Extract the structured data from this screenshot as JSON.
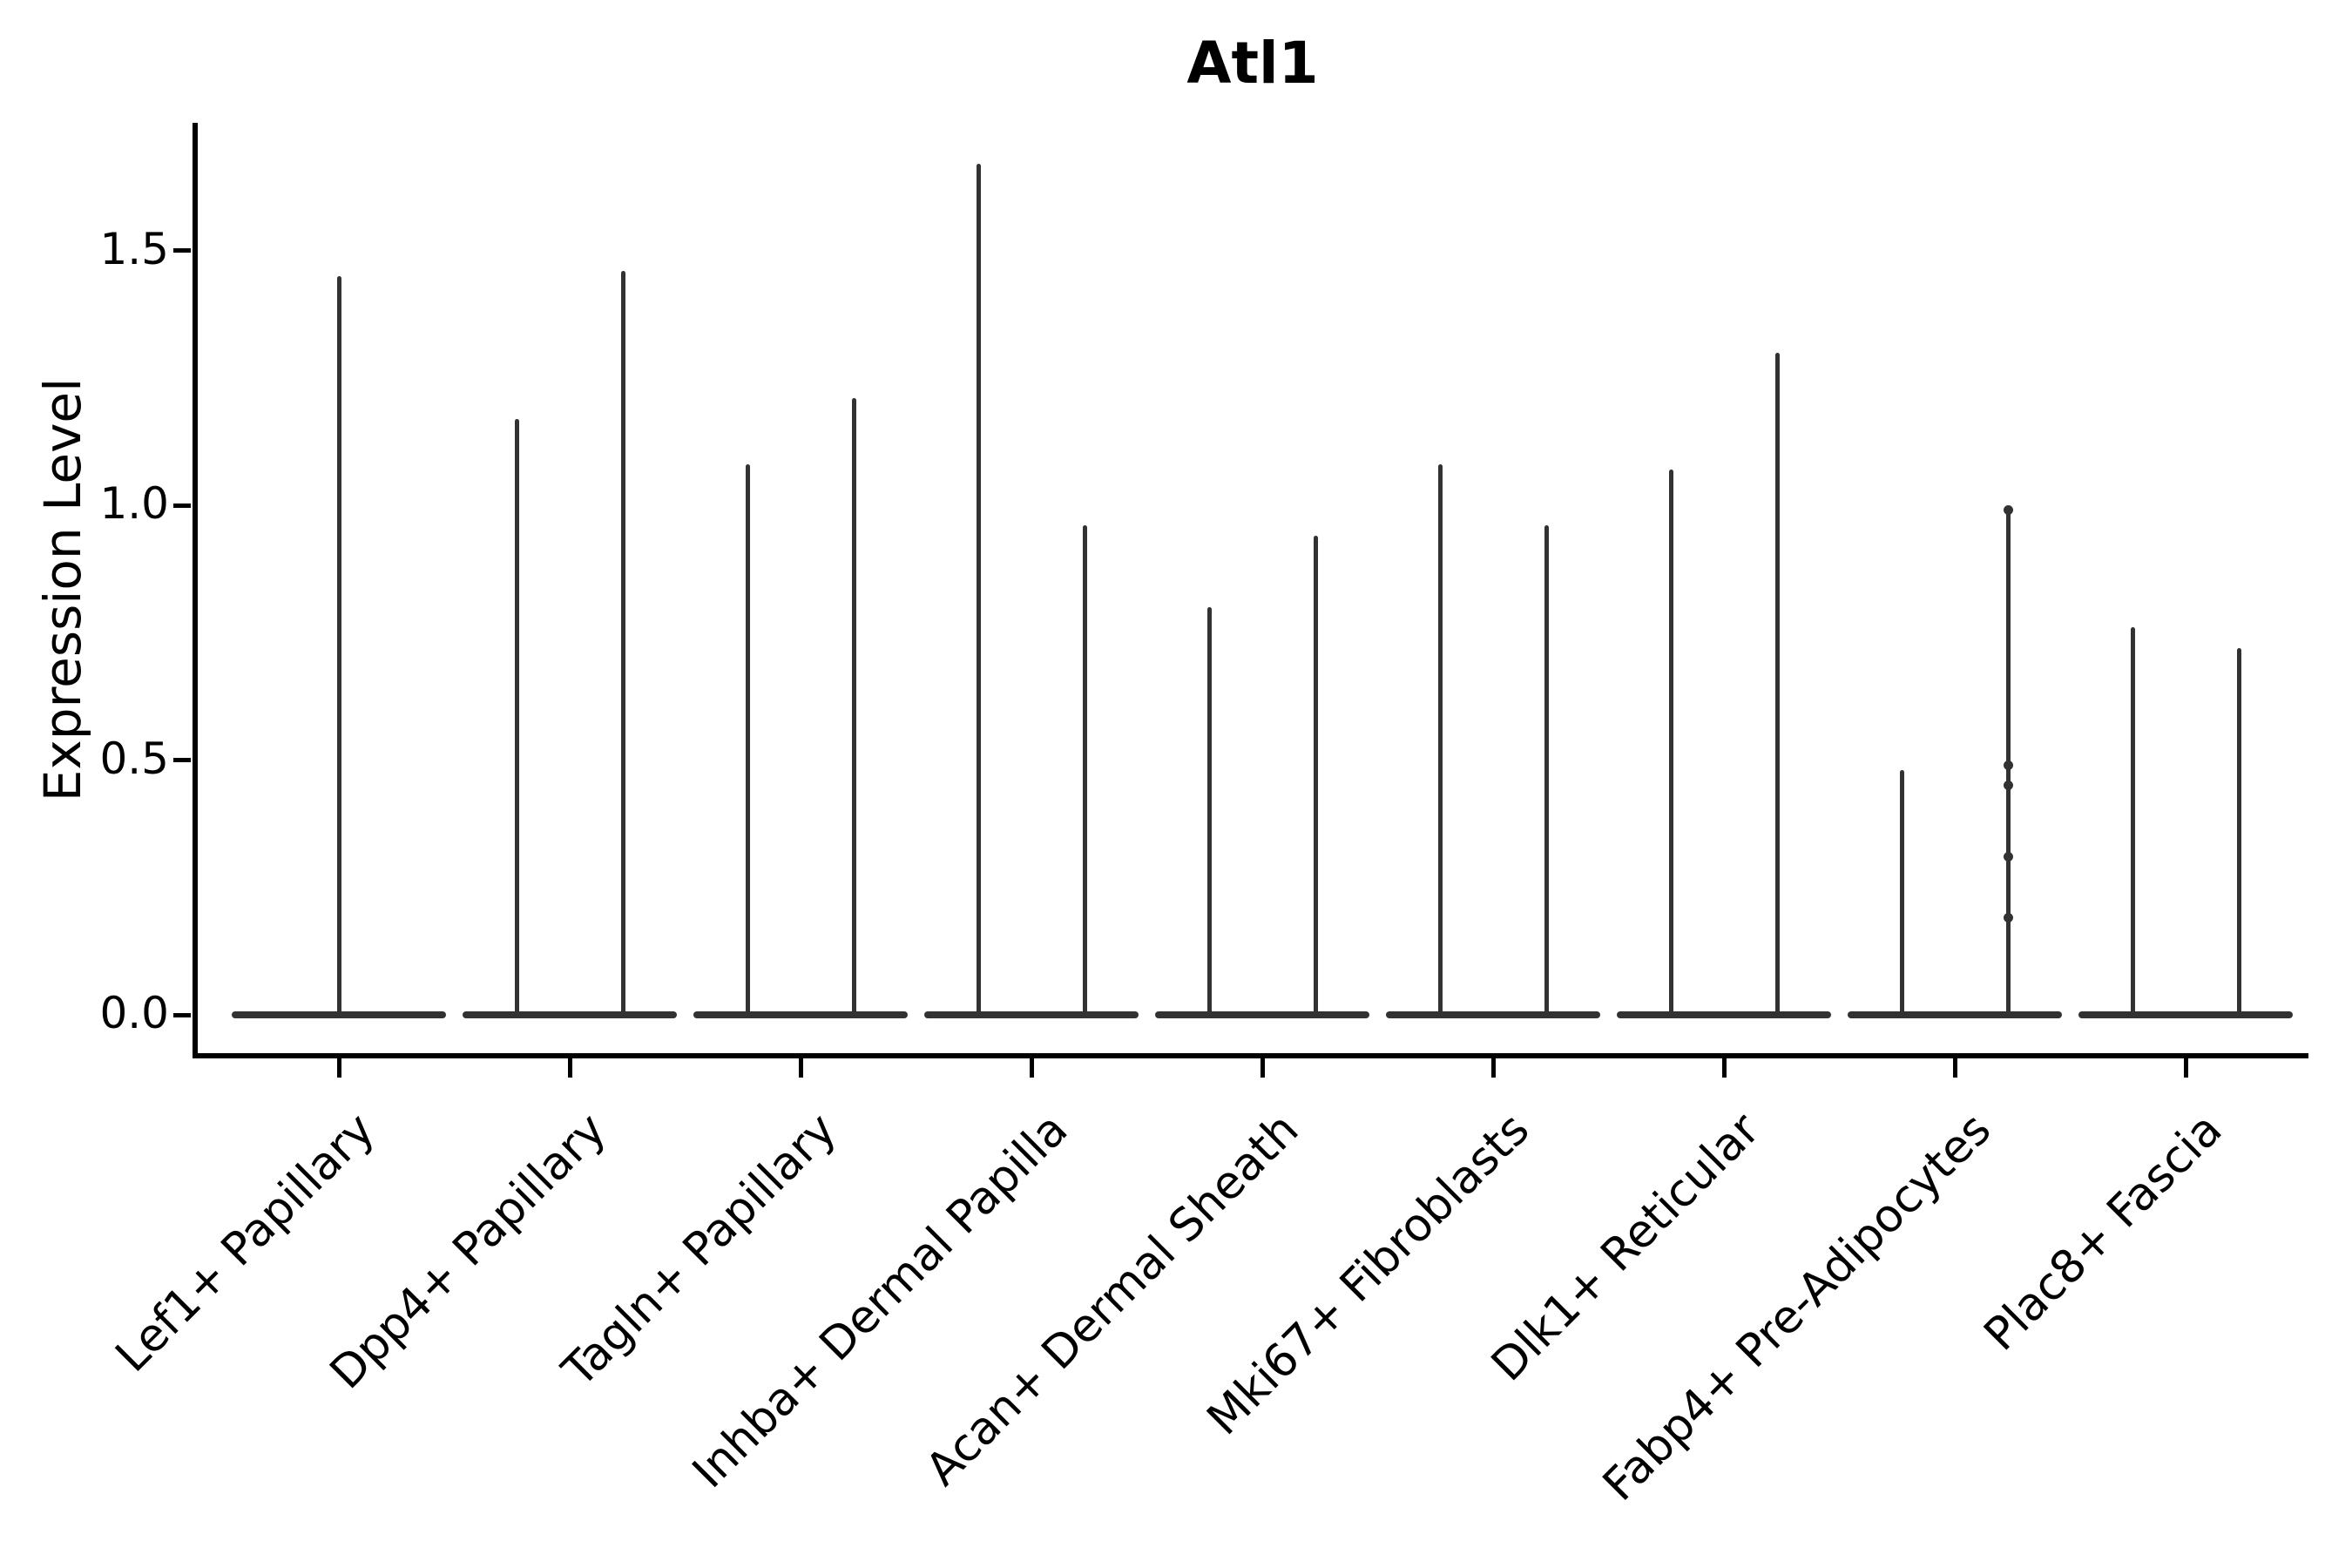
{
  "chart_data": {
    "type": "violin",
    "title": "Atl1",
    "ylabel": "Expression Level",
    "xlabel": "",
    "ytick_labels": [
      "1.5",
      "1.0",
      "0.5",
      "0.0"
    ],
    "ytick_values": [
      1.5,
      1.0,
      0.5,
      0.0
    ],
    "ylim": [
      -0.08,
      1.75
    ],
    "grid": false,
    "legend_position": "none",
    "categories": [
      "Lef1+ Papillary",
      "Dpp4+ Papillary",
      "Tagln+ Papillary",
      "Inhba+ Dermal Papilla",
      "Acan+ Dermal Sheath",
      "Mki67+ Fibroblasts",
      "Dlk1+ Reticular",
      "Fabp4+ Pre-Adipocytes",
      "Plac8+ Fascia"
    ],
    "violins": [
      {
        "category": "Lef1+ Papillary",
        "baseline": 0.0,
        "spikes": [
          {
            "pos": "center",
            "peak": 1.45
          }
        ]
      },
      {
        "category": "Dpp4+ Papillary",
        "baseline": 0.0,
        "spikes": [
          {
            "pos": "left",
            "peak": 1.17
          },
          {
            "pos": "right",
            "peak": 1.46
          }
        ]
      },
      {
        "category": "Tagln+ Papillary",
        "baseline": 0.0,
        "spikes": [
          {
            "pos": "left",
            "peak": 1.08
          },
          {
            "pos": "right",
            "peak": 1.21
          }
        ]
      },
      {
        "category": "Inhba+ Dermal Papilla",
        "baseline": 0.0,
        "spikes": [
          {
            "pos": "left",
            "peak": 1.67
          },
          {
            "pos": "right",
            "peak": 0.96
          }
        ]
      },
      {
        "category": "Acan+ Dermal Sheath",
        "baseline": 0.0,
        "spikes": [
          {
            "pos": "left",
            "peak": 0.8
          },
          {
            "pos": "right",
            "peak": 0.94
          }
        ]
      },
      {
        "category": "Mki67+ Fibroblasts",
        "baseline": 0.0,
        "spikes": [
          {
            "pos": "left",
            "peak": 1.08
          },
          {
            "pos": "right",
            "peak": 0.96
          }
        ]
      },
      {
        "category": "Dlk1+ Reticular",
        "baseline": 0.0,
        "spikes": [
          {
            "pos": "left",
            "peak": 1.07
          },
          {
            "pos": "right",
            "peak": 1.3
          }
        ]
      },
      {
        "category": "Fabp4+ Pre-Adipocytes",
        "baseline": 0.0,
        "spikes": [
          {
            "pos": "left",
            "peak": 0.48
          },
          {
            "pos": "right",
            "peak": 0.99,
            "points": [
              0.99,
              0.49,
              0.45,
              0.31,
              0.19
            ]
          }
        ]
      },
      {
        "category": "Plac8+ Fascia",
        "baseline": 0.0,
        "spikes": [
          {
            "pos": "left",
            "peak": 0.76
          },
          {
            "pos": "right",
            "peak": 0.72
          }
        ]
      }
    ],
    "colors": {
      "violin": "#323232",
      "axis": "#000000",
      "text": "#000000",
      "background": "#ffffff"
    }
  }
}
